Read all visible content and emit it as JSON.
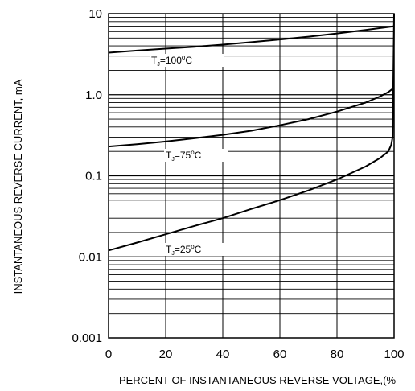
{
  "chart_data": {
    "type": "line",
    "title": "",
    "xlabel": "PERCENT OF INSTANTANEOUS REVERSE VOLTAGE,(%",
    "ylabel": "INSTANTANEOUS REVERSE CURRENT, mA",
    "xlim": [
      0,
      100
    ],
    "ylim": [
      0.001,
      10
    ],
    "y_scale": "log",
    "grid": true,
    "x_ticks": [
      0,
      20,
      40,
      60,
      80,
      100
    ],
    "x_tick_labels": [
      "0",
      "20",
      "40",
      "60",
      "80",
      "100"
    ],
    "y_ticks": [
      0.001,
      0.01,
      0.1,
      1,
      10
    ],
    "y_tick_labels": [
      "0.001",
      "0.01",
      "0.1",
      "1.0",
      "10"
    ],
    "series": [
      {
        "name": "TJ=100°C",
        "label_main": "T",
        "label_sub": "J",
        "label_mid": "=100",
        "label_sup": "o",
        "label_end": "C",
        "x": [
          0,
          10,
          20,
          30,
          40,
          50,
          60,
          70,
          80,
          90,
          100
        ],
        "y": [
          3.3,
          3.5,
          3.7,
          3.9,
          4.15,
          4.45,
          4.8,
          5.2,
          5.7,
          6.3,
          7.0
        ]
      },
      {
        "name": "TJ=75°C",
        "label_main": "T",
        "label_sub": "J",
        "label_mid": "=75",
        "label_sup": "o",
        "label_end": "C",
        "x": [
          0,
          10,
          20,
          30,
          40,
          50,
          60,
          70,
          80,
          90,
          95,
          98,
          100
        ],
        "y": [
          0.23,
          0.245,
          0.265,
          0.29,
          0.32,
          0.36,
          0.42,
          0.5,
          0.62,
          0.8,
          0.95,
          1.08,
          1.22
        ]
      },
      {
        "name": "TJ=25°C",
        "label_main": "T",
        "label_sub": "J",
        "label_mid": "=25",
        "label_sup": "o",
        "label_end": "C",
        "x": [
          0,
          10,
          20,
          30,
          40,
          50,
          60,
          70,
          80,
          90,
          95,
          98,
          99,
          99.5,
          100
        ],
        "y": [
          0.012,
          0.015,
          0.019,
          0.024,
          0.03,
          0.039,
          0.05,
          0.066,
          0.09,
          0.13,
          0.165,
          0.2,
          0.24,
          0.3,
          10
        ]
      }
    ]
  }
}
